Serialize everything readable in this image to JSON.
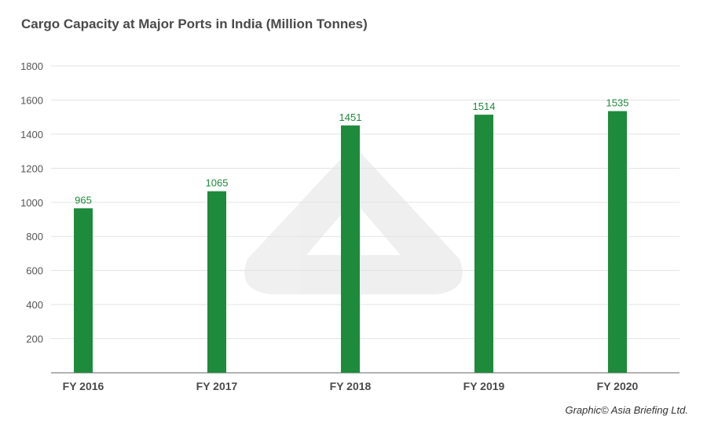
{
  "chart_data": {
    "type": "bar",
    "title": "Cargo Capacity at Major Ports in India (Million Tonnes)",
    "categories": [
      "FY 2016",
      "FY 2017",
      "FY 2018",
      "FY 2019",
      "FY 2020"
    ],
    "values": [
      965,
      1065,
      1451,
      1514,
      1535
    ],
    "data_labels": [
      "965",
      "1065",
      "1451",
      "1514",
      "1535"
    ],
    "yticks": [
      200,
      400,
      600,
      800,
      1000,
      1200,
      1400,
      1600,
      1800
    ],
    "ylim": [
      0,
      1800
    ],
    "grid": true,
    "xlabel": "",
    "ylabel": "",
    "bar_color": "#1e8a3c",
    "credit": "Graphic© Asia Briefing Ltd."
  }
}
